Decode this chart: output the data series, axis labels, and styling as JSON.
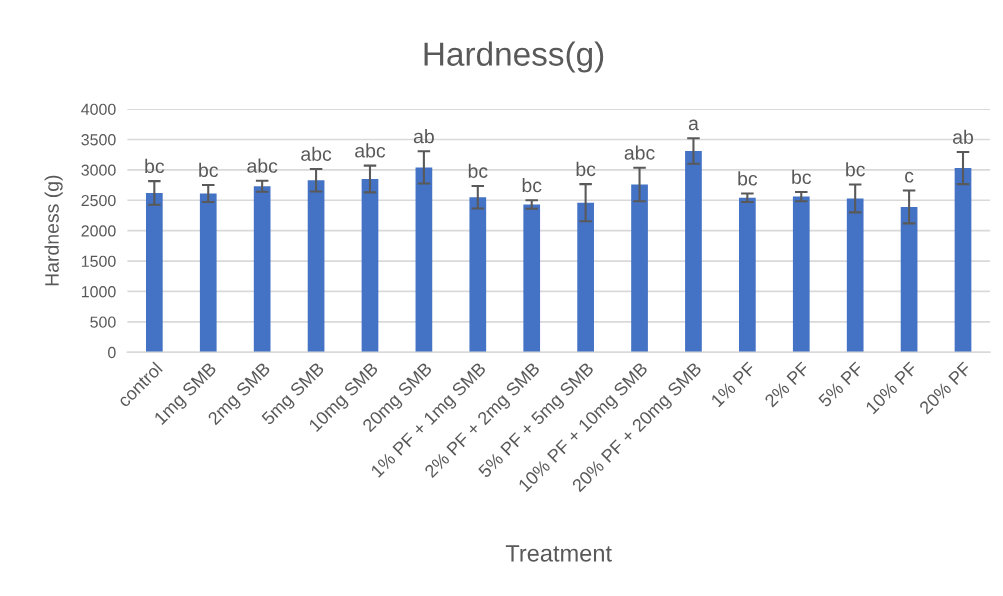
{
  "chart_data": {
    "type": "bar",
    "title": "Hardness(g)",
    "xlabel": "Treatment",
    "ylabel": "Hardness (g)",
    "categories": [
      "control",
      "1mg SMB",
      "2mg SMB",
      "5mg SMB",
      "10mg SMB",
      "20mg SMB",
      "1% PF + 1mg SMB",
      "2% PF + 2mg SMB",
      "5% PF + 5mg SMB",
      "10% PF + 10mg SMB",
      "20% PF + 20mg SMB",
      "1% PF",
      "2% PF",
      "5% PF",
      "10% PF",
      "20% PF"
    ],
    "values": [
      2620,
      2610,
      2730,
      2830,
      2850,
      3040,
      2550,
      2430,
      2460,
      2760,
      3310,
      2540,
      2560,
      2530,
      2390,
      3030
    ],
    "errors": [
      195,
      140,
      90,
      185,
      220,
      265,
      185,
      70,
      305,
      275,
      210,
      70,
      75,
      230,
      270,
      265
    ],
    "color": "#4472c4",
    "annotations": [
      "bc",
      "bc",
      "abc",
      "abc",
      "abc",
      "ab",
      "bc",
      "bc",
      "bc",
      "abc",
      "a",
      "bc",
      "bc",
      "bc",
      "c",
      "ab"
    ],
    "ylim": [
      0,
      4000
    ],
    "yticks": [
      0,
      500,
      1000,
      1500,
      2000,
      2500,
      3000,
      3500,
      4000
    ],
    "grid": "y"
  }
}
